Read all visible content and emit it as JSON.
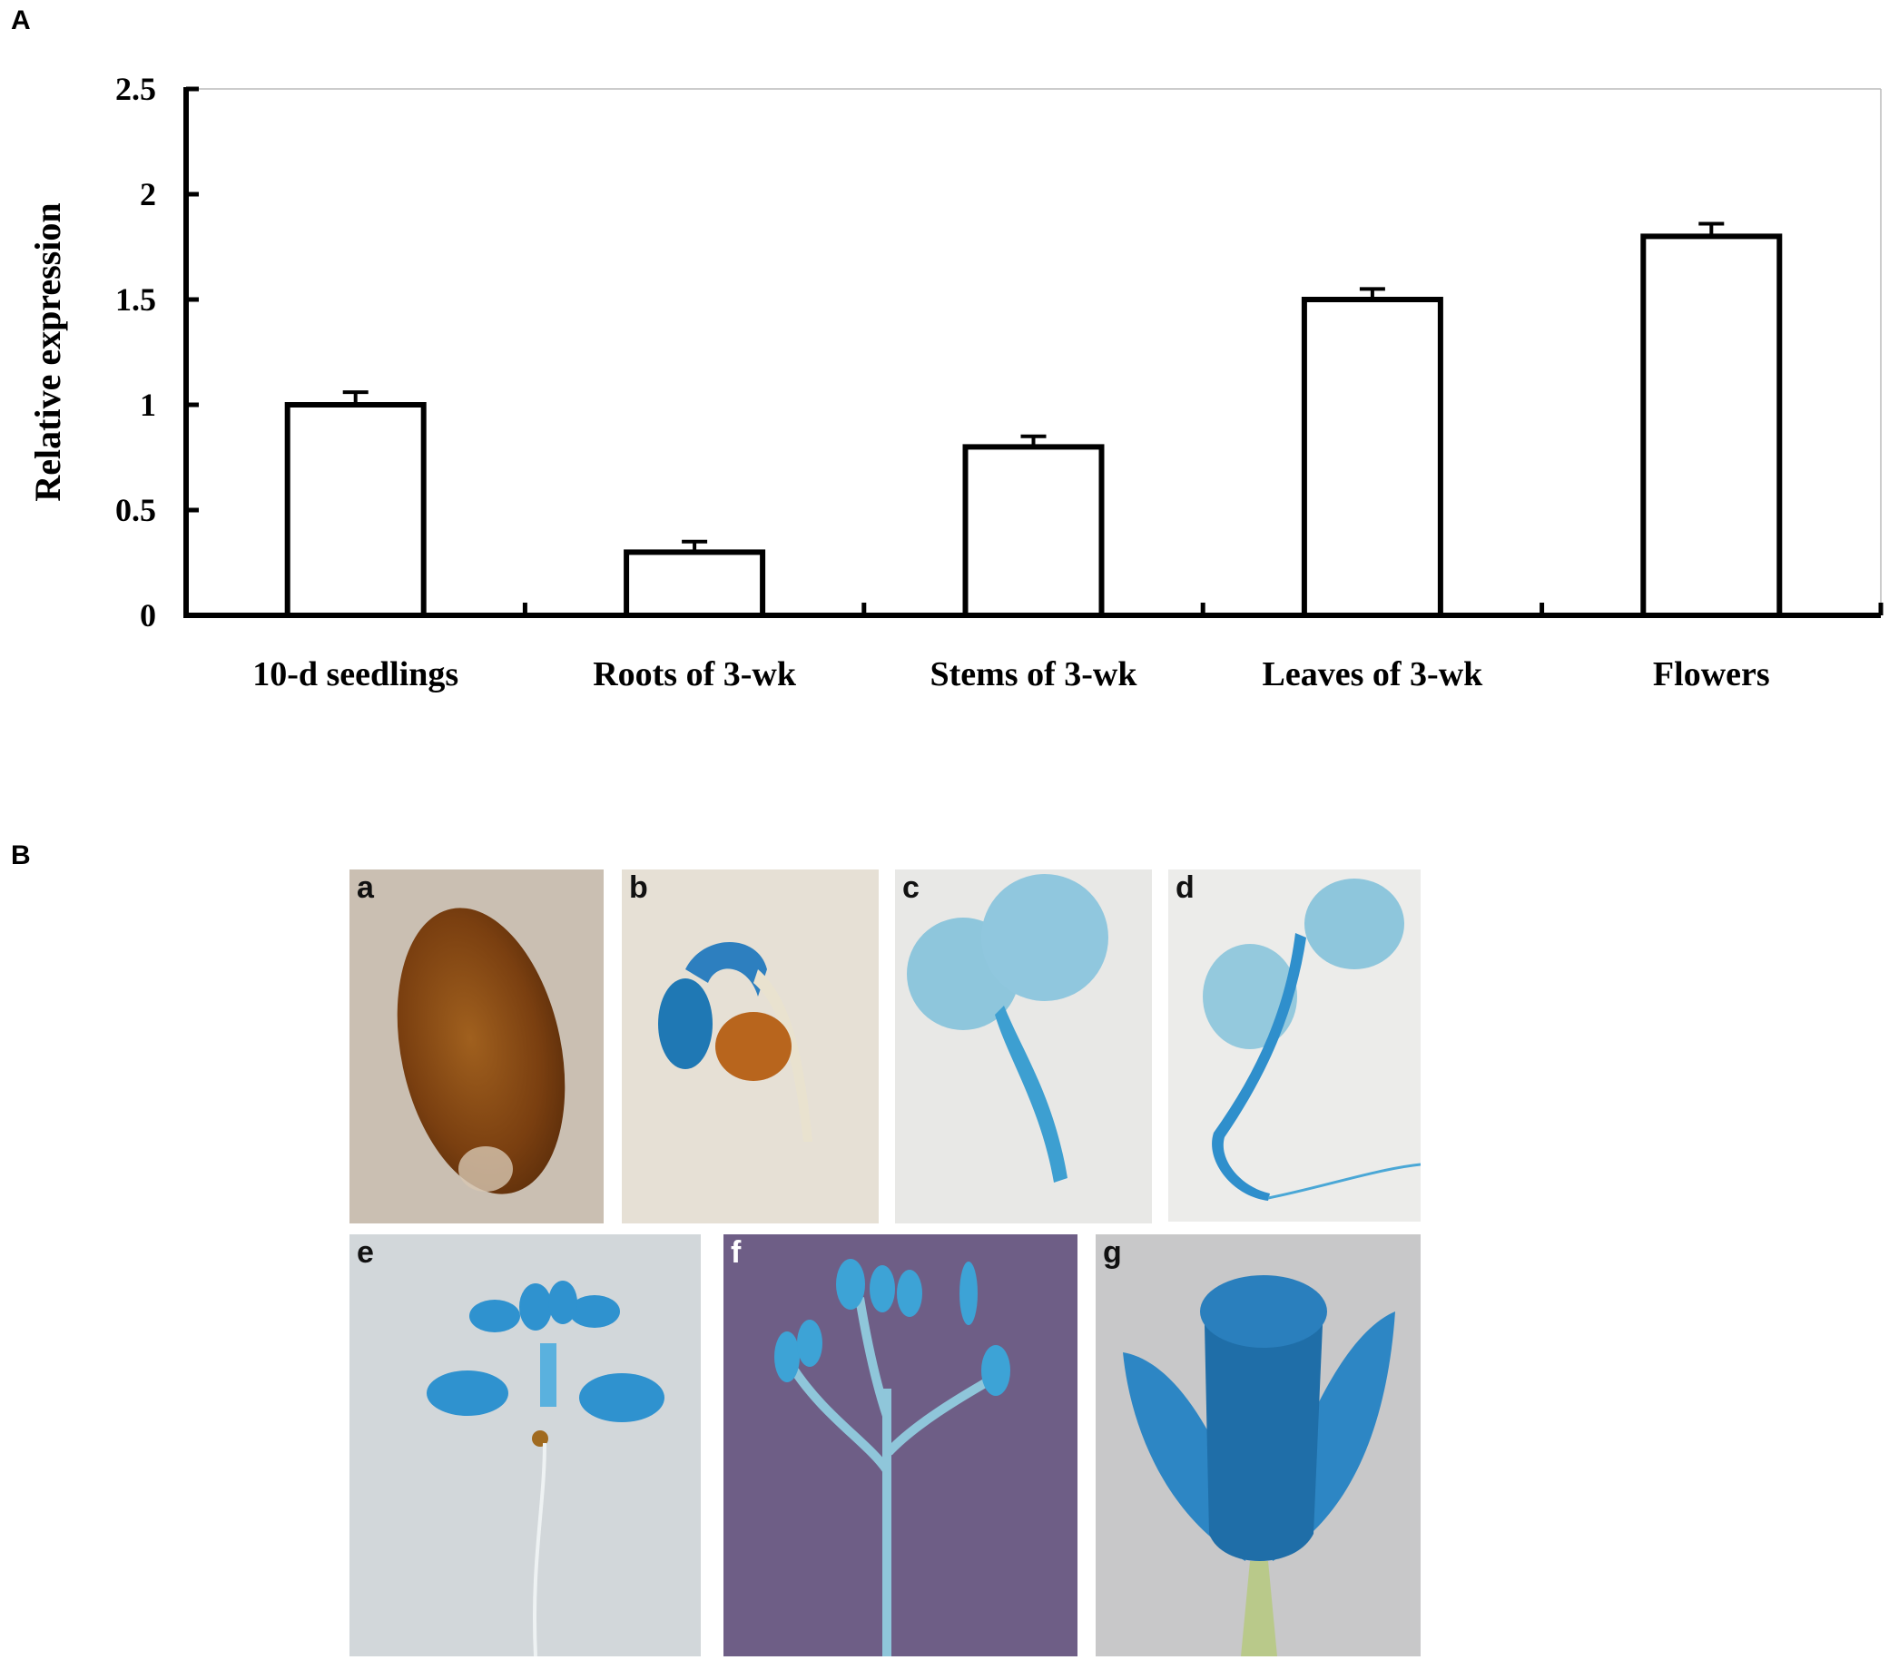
{
  "panels": {
    "a": "A",
    "b": "B"
  },
  "chart_data": {
    "type": "bar",
    "categories": [
      "10-d seedlings",
      "Roots of 3-wk",
      "Stems of 3-wk",
      "Leaves of 3-wk",
      "Flowers"
    ],
    "values": [
      1.0,
      0.3,
      0.8,
      1.5,
      1.8
    ],
    "errors": [
      0.06,
      0.05,
      0.05,
      0.05,
      0.06
    ],
    "ylabel": "Relative expression",
    "xlabel": "",
    "ylim": [
      0,
      2.5
    ],
    "yticks": [
      "0",
      "0.5",
      "1",
      "1.5",
      "2",
      "2.5"
    ],
    "grid": false,
    "bar_fill": "#ffffff",
    "bar_stroke": "#000000"
  },
  "photos": [
    {
      "letter": "a",
      "subject": "seed"
    },
    {
      "letter": "b",
      "subject": "germinating-seedling"
    },
    {
      "letter": "c",
      "subject": "seedling-cotyledons"
    },
    {
      "letter": "d",
      "subject": "seedling-with-root"
    },
    {
      "letter": "e",
      "subject": "young-plant-rosette"
    },
    {
      "letter": "f",
      "subject": "inflorescence"
    },
    {
      "letter": "g",
      "subject": "flower"
    }
  ],
  "colors": {
    "gus_blue": "#2d8fc9",
    "seed_brown": "#8a4a14"
  }
}
